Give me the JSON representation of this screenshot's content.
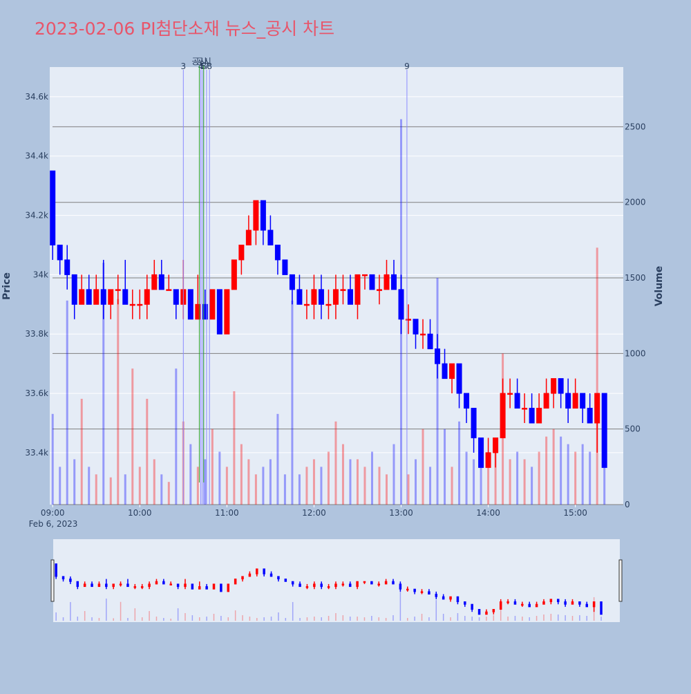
{
  "chart_data": {
    "type": "candlestick",
    "title": "2023-02-06 PI첨단소재 뉴스_공시 차트",
    "ylabel": "Price",
    "y2label": "Volume",
    "x_sub_label": "Feb 6, 2023",
    "colors": {
      "up": "#ff0000",
      "down": "#0000ff"
    },
    "range_slider": true,
    "x": [
      "09:00",
      "09:05",
      "09:10",
      "09:15",
      "09:20",
      "09:25",
      "09:30",
      "09:35",
      "09:40",
      "09:45",
      "09:50",
      "09:55",
      "10:00",
      "10:05",
      "10:10",
      "10:15",
      "10:20",
      "10:25",
      "10:30",
      "10:35",
      "10:40",
      "10:45",
      "10:50",
      "10:55",
      "11:00",
      "11:05",
      "11:10",
      "11:15",
      "11:20",
      "11:25",
      "11:30",
      "11:35",
      "11:40",
      "11:45",
      "11:50",
      "11:55",
      "12:00",
      "12:05",
      "12:10",
      "12:15",
      "12:20",
      "12:25",
      "12:30",
      "12:35",
      "12:40",
      "12:45",
      "12:50",
      "12:55",
      "13:00",
      "13:05",
      "13:10",
      "13:15",
      "13:20",
      "13:25",
      "13:30",
      "13:35",
      "13:40",
      "13:45",
      "13:50",
      "13:55",
      "14:00",
      "14:05",
      "14:10",
      "14:15",
      "14:20",
      "14:25",
      "14:30",
      "14:35",
      "14:40",
      "14:45",
      "14:50",
      "14:55",
      "15:00",
      "15:05",
      "15:10",
      "15:15",
      "15:20"
    ],
    "open": [
      34350,
      34100,
      34050,
      34000,
      33900,
      33950,
      33900,
      33950,
      33900,
      33950,
      33950,
      33900,
      33900,
      33900,
      33950,
      34000,
      33950,
      33950,
      33900,
      33950,
      33850,
      33900,
      33850,
      33950,
      33800,
      33950,
      34050,
      34100,
      34150,
      34250,
      34150,
      34100,
      34050,
      34000,
      33950,
      33900,
      33900,
      33950,
      33900,
      33900,
      33950,
      33950,
      33900,
      34000,
      34000,
      33950,
      33950,
      34000,
      33950,
      33850,
      33850,
      33800,
      33800,
      33750,
      33700,
      33650,
      33700,
      33600,
      33550,
      33450,
      33350,
      33400,
      33450,
      33600,
      33600,
      33550,
      33550,
      33500,
      33550,
      33600,
      33650,
      33600,
      33550,
      33600,
      33550,
      33500,
      33600
    ],
    "high": [
      34350,
      34100,
      34100,
      34000,
      34000,
      34000,
      34000,
      34050,
      33950,
      34000,
      34050,
      33950,
      33950,
      34000,
      34050,
      34050,
      34000,
      33950,
      34050,
      33950,
      34000,
      33950,
      33950,
      33950,
      33950,
      34050,
      34100,
      34200,
      34250,
      34250,
      34200,
      34100,
      34050,
      34000,
      34000,
      33950,
      34000,
      34000,
      33950,
      34000,
      34000,
      34000,
      34000,
      34000,
      34000,
      34000,
      34050,
      34050,
      34000,
      33900,
      33850,
      33850,
      33850,
      33800,
      33750,
      33700,
      33700,
      33600,
      33550,
      33450,
      33450,
      33450,
      33650,
      33650,
      33650,
      33600,
      33600,
      33600,
      33650,
      33650,
      33650,
      33650,
      33650,
      33600,
      33600,
      33600,
      33600
    ],
    "low": [
      34050,
      34000,
      33950,
      33850,
      33900,
      33900,
      33900,
      33850,
      33850,
      33900,
      33900,
      33850,
      33850,
      33850,
      33950,
      33950,
      33950,
      33850,
      33850,
      33850,
      33850,
      33850,
      33850,
      33800,
      33800,
      33950,
      34000,
      34100,
      34100,
      34100,
      34100,
      34000,
      34000,
      33900,
      33900,
      33850,
      33850,
      33850,
      33850,
      33850,
      33900,
      33900,
      33850,
      33950,
      33950,
      33900,
      33950,
      33950,
      33800,
      33800,
      33750,
      33750,
      33750,
      33650,
      33650,
      33600,
      33550,
      33500,
      33400,
      33350,
      33350,
      33350,
      33450,
      33550,
      33550,
      33500,
      33500,
      33500,
      33550,
      33550,
      33550,
      33500,
      33550,
      33500,
      33500,
      33400,
      33350
    ],
    "close": [
      34100,
      34050,
      34000,
      33900,
      33950,
      33900,
      33950,
      33900,
      33950,
      33950,
      33900,
      33900,
      33900,
      33950,
      34000,
      33950,
      33950,
      33900,
      33950,
      33850,
      33900,
      33850,
      33950,
      33800,
      33950,
      34050,
      34100,
      34150,
      34250,
      34150,
      34100,
      34050,
      34000,
      33950,
      33900,
      33900,
      33950,
      33900,
      33900,
      33950,
      33950,
      33900,
      34000,
      34000,
      33950,
      33950,
      34000,
      33950,
      33850,
      33850,
      33800,
      33800,
      33750,
      33700,
      33650,
      33700,
      33600,
      33550,
      33450,
      33350,
      33400,
      33450,
      33600,
      33600,
      33550,
      33550,
      33500,
      33550,
      33600,
      33650,
      33600,
      33550,
      33600,
      33550,
      33500,
      33600,
      33350
    ],
    "volume": [
      600,
      250,
      1350,
      300,
      700,
      250,
      200,
      1600,
      180,
      1360,
      200,
      900,
      250,
      700,
      300,
      200,
      150,
      900,
      550,
      400,
      250,
      300,
      500,
      350,
      250,
      750,
      400,
      300,
      200,
      250,
      300,
      600,
      200,
      1350,
      200,
      250,
      300,
      250,
      350,
      550,
      400,
      300,
      300,
      250,
      350,
      250,
      200,
      400,
      2550,
      200,
      300,
      500,
      250,
      1500,
      500,
      250,
      550,
      350,
      300,
      250,
      300,
      400,
      1000,
      300,
      350,
      300,
      250,
      350,
      450,
      500,
      450,
      400,
      350,
      400,
      350,
      1700,
      300
    ],
    "xlim": [
      "08:58",
      "15:33"
    ],
    "xticks": [
      "09:00",
      "10:00",
      "11:00",
      "12:00",
      "13:00",
      "14:00",
      "15:00"
    ],
    "ylim": [
      33225,
      34700
    ],
    "yticks": [
      {
        "value": 33400,
        "label": "33.4k"
      },
      {
        "value": 33600,
        "label": "33.6k"
      },
      {
        "value": 33800,
        "label": "33.8k"
      },
      {
        "value": 34000,
        "label": "34k"
      },
      {
        "value": 34200,
        "label": "34.2k"
      },
      {
        "value": 34400,
        "label": "34.4k"
      },
      {
        "value": 34600,
        "label": "34.6k"
      }
    ],
    "y2lim": [
      0,
      2895
    ],
    "y2ticks": [
      0,
      500,
      1000,
      1500,
      2000,
      2500
    ],
    "news_markers": [
      {
        "time": "10:30",
        "label": "3"
      },
      {
        "time": "10:42",
        "label": "4"
      },
      {
        "time": "10:43",
        "label": "5"
      },
      {
        "time": "10:44",
        "label": "6"
      },
      {
        "time": "10:46",
        "label": "7"
      },
      {
        "time": "10:48",
        "label": "8"
      },
      {
        "time": "13:04",
        "label": "9"
      }
    ],
    "disclosure_markers": [
      {
        "time": "10:41",
        "label": "공시"
      },
      {
        "time": "10:44",
        "label": "공시"
      }
    ]
  }
}
